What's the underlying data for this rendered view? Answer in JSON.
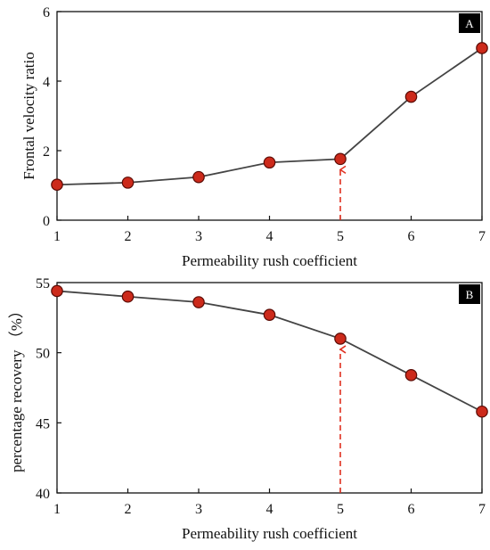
{
  "chart_data": [
    {
      "type": "line",
      "panel_label": "A",
      "title": "",
      "xlabel": "Permeability rush coefficient",
      "ylabel": "Frontal velocity ratio",
      "x": [
        1,
        2,
        3,
        4,
        5,
        6,
        7
      ],
      "series": [
        {
          "values": [
            1.02,
            1.08,
            1.24,
            1.66,
            1.76,
            3.55,
            4.95
          ]
        }
      ],
      "xlim": [
        1,
        7
      ],
      "ylim": [
        0,
        6
      ],
      "xticks": [
        "1",
        "2",
        "3",
        "4",
        "5",
        "6",
        "7"
      ],
      "yticks": [
        "0",
        "2",
        "4",
        "6"
      ],
      "marker_at_x": 5,
      "grid": false,
      "colors": {
        "line": "#444444",
        "marker": "#cc2a1b",
        "marker_edge": "#5a0b05",
        "arrow": "#e03020"
      }
    },
    {
      "type": "line",
      "panel_label": "B",
      "title": "",
      "xlabel": "Permeability rush coefficient",
      "ylabel": "percentage recovery （%）",
      "x": [
        1,
        2,
        3,
        4,
        5,
        6,
        7
      ],
      "series": [
        {
          "values": [
            54.4,
            54.0,
            53.6,
            52.7,
            51.0,
            48.4,
            45.8
          ]
        }
      ],
      "xlim": [
        1,
        7
      ],
      "ylim": [
        40,
        55
      ],
      "xticks": [
        "1",
        "2",
        "3",
        "4",
        "5",
        "6",
        "7"
      ],
      "yticks": [
        "40",
        "45",
        "50",
        "55"
      ],
      "marker_at_x": 5,
      "grid": false,
      "colors": {
        "line": "#444444",
        "marker": "#cc2a1b",
        "marker_edge": "#5a0b05",
        "arrow": "#e03020"
      }
    }
  ]
}
